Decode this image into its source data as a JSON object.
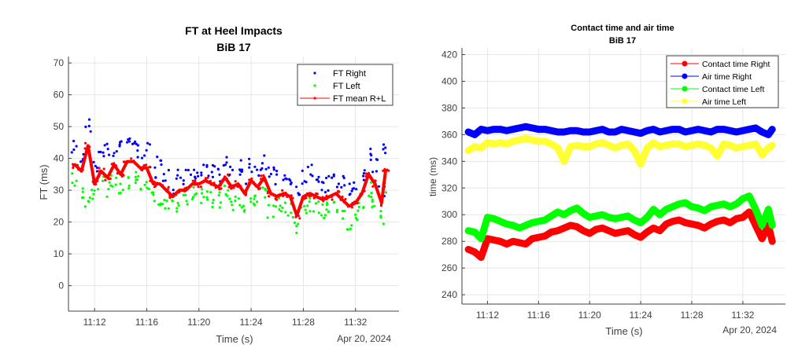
{
  "chart_data": [
    {
      "type": "scatter",
      "title": "FT at Heel Impacts",
      "subtitle": "BiB 17",
      "xlabel": "Time (s)",
      "ylabel": "FT (ms)",
      "x_date_label": "Apr 20, 2024",
      "ylim": [
        -8,
        72
      ],
      "xlim": [
        "11:10:00",
        "11:35:20"
      ],
      "grid": true,
      "legend_position": "top-right",
      "yticks": [
        0,
        10,
        20,
        30,
        40,
        50,
        60,
        70
      ],
      "ytick_labels": [
        "0",
        "10",
        "20",
        "30",
        "40",
        "50",
        "60",
        "70"
      ],
      "xticks": [
        "11:12",
        "11:16",
        "11:20",
        "11:24",
        "11:28",
        "11:32"
      ],
      "x": [
        "11:10.5",
        "11:11",
        "11:11.5",
        "11:12",
        "11:12.5",
        "11:13",
        "11:13.5",
        "11:14",
        "11:14.5",
        "11:15",
        "11:15.5",
        "11:16",
        "11:16.5",
        "11:17",
        "11:17.5",
        "11:18",
        "11:18.5",
        "11:19",
        "11:19.5",
        "11:20",
        "11:20.5",
        "11:21",
        "11:21.5",
        "11:22",
        "11:22.5",
        "11:23",
        "11:23.5",
        "11:24",
        "11:24.5",
        "11:25",
        "11:25.5",
        "11:26",
        "11:26.5",
        "11:27",
        "11:27.5",
        "11:28",
        "11:28.5",
        "11:29",
        "11:29.5",
        "11:30",
        "11:30.5",
        "11:31",
        "11:31.5",
        "11:32",
        "11:32.5",
        "11:33",
        "11:33.5",
        "11:34",
        "11:34.3"
      ],
      "series": [
        {
          "name": "FT Right",
          "color": "#0000ff",
          "marker": "dot",
          "line": false,
          "values": [
            44,
            40,
            50,
            38,
            41,
            43,
            40,
            44,
            46,
            44,
            42,
            43,
            36,
            38,
            35,
            31,
            35,
            34,
            36,
            35,
            37,
            36,
            35,
            38,
            36,
            37,
            34,
            38,
            36,
            39,
            35,
            34,
            35,
            33,
            31,
            34,
            36,
            33,
            31,
            32,
            33,
            32,
            30,
            31,
            34,
            41,
            38,
            30,
            42
          ]
        },
        {
          "name": "FT Left",
          "color": "#00ff00",
          "marker": "dot",
          "line": false,
          "values": [
            33,
            30,
            26,
            28,
            32,
            30,
            33,
            31,
            33,
            34,
            32,
            32,
            28,
            26,
            25,
            26,
            25,
            27,
            29,
            28,
            28,
            27,
            27,
            29,
            26,
            27,
            24,
            28,
            27,
            29,
            23,
            25,
            24,
            24,
            19,
            23,
            25,
            24,
            23,
            24,
            25,
            23,
            20,
            22,
            25,
            30,
            26,
            21,
            30
          ]
        },
        {
          "name": "FT mean R+L",
          "color": "#ff0000",
          "marker": "dot",
          "line": true,
          "values": [
            38,
            36,
            44,
            32,
            36,
            34,
            38,
            35,
            39,
            39,
            37,
            37,
            32,
            32,
            30,
            28,
            30,
            30,
            32,
            32,
            33,
            32,
            31,
            34,
            31,
            32,
            29,
            33,
            31,
            34,
            29,
            28,
            29,
            28,
            22,
            28,
            29,
            28,
            27,
            28,
            29,
            27,
            25,
            26,
            29,
            35,
            32,
            26,
            36
          ]
        }
      ]
    },
    {
      "type": "line",
      "title": "Contact time and air time",
      "subtitle": "BiB 17",
      "xlabel": "Time (s)",
      "ylabel": "time (ms)",
      "x_date_label": "Apr 20, 2024",
      "ylim": [
        233,
        425
      ],
      "xlim": [
        "11:10:00",
        "11:35:20"
      ],
      "grid": true,
      "legend_position": "top-right",
      "yticks": [
        240,
        260,
        280,
        300,
        320,
        340,
        360,
        380,
        400,
        420
      ],
      "ytick_labels": [
        "240",
        "260",
        "280",
        "300",
        "320",
        "340",
        "360",
        "380",
        "400",
        "420"
      ],
      "xticks": [
        "11:12",
        "11:16",
        "11:20",
        "11:24",
        "11:28",
        "11:32"
      ],
      "x": [
        "11:10.5",
        "11:11",
        "11:11.5",
        "11:12",
        "11:12.5",
        "11:13",
        "11:13.5",
        "11:14",
        "11:14.5",
        "11:15",
        "11:15.5",
        "11:16",
        "11:16.5",
        "11:17",
        "11:17.5",
        "11:18",
        "11:18.5",
        "11:19",
        "11:19.5",
        "11:20",
        "11:20.5",
        "11:21",
        "11:21.5",
        "11:22",
        "11:22.5",
        "11:23",
        "11:23.5",
        "11:24",
        "11:24.5",
        "11:25",
        "11:25.5",
        "11:26",
        "11:26.5",
        "11:27",
        "11:27.5",
        "11:28",
        "11:28.5",
        "11:29",
        "11:29.5",
        "11:30",
        "11:30.5",
        "11:31",
        "11:31.5",
        "11:32",
        "11:32.5",
        "11:33",
        "11:33.5",
        "11:34",
        "11:34.3"
      ],
      "series": [
        {
          "name": "Contact time Right",
          "color": "#ff0000",
          "values": [
            274,
            272,
            268,
            282,
            281,
            280,
            278,
            280,
            279,
            278,
            282,
            283,
            284,
            287,
            288,
            290,
            292,
            291,
            288,
            286,
            289,
            290,
            288,
            286,
            287,
            288,
            285,
            283,
            287,
            290,
            288,
            293,
            295,
            296,
            294,
            293,
            292,
            290,
            293,
            295,
            296,
            294,
            297,
            298,
            302,
            292,
            282,
            292,
            280
          ]
        },
        {
          "name": "Air time Right",
          "color": "#0000ff",
          "values": [
            362,
            360,
            364,
            363,
            364,
            364,
            363,
            364,
            365,
            366,
            365,
            364,
            364,
            363,
            362,
            362,
            363,
            363,
            362,
            362,
            363,
            364,
            362,
            362,
            364,
            363,
            362,
            361,
            363,
            364,
            362,
            363,
            364,
            364,
            362,
            363,
            364,
            363,
            362,
            364,
            364,
            363,
            362,
            363,
            364,
            365,
            362,
            360,
            364
          ]
        },
        {
          "name": "Contact time Left",
          "color": "#00ff00",
          "values": [
            288,
            287,
            282,
            298,
            297,
            295,
            293,
            292,
            290,
            292,
            294,
            295,
            296,
            299,
            302,
            300,
            303,
            305,
            301,
            298,
            299,
            300,
            298,
            297,
            298,
            299,
            296,
            294,
            298,
            304,
            300,
            304,
            306,
            308,
            309,
            306,
            305,
            303,
            306,
            307,
            308,
            306,
            308,
            312,
            314,
            304,
            292,
            304,
            292
          ]
        },
        {
          "name": "Air time Left",
          "color": "#ffff33",
          "values": [
            348,
            351,
            350,
            354,
            353,
            354,
            353,
            355,
            356,
            357,
            356,
            355,
            355,
            353,
            350,
            340,
            351,
            352,
            351,
            351,
            353,
            354,
            352,
            350,
            352,
            353,
            348,
            338,
            350,
            354,
            351,
            352,
            353,
            353,
            351,
            352,
            353,
            352,
            350,
            344,
            353,
            352,
            350,
            351,
            352,
            353,
            345,
            350,
            352
          ]
        }
      ]
    }
  ]
}
